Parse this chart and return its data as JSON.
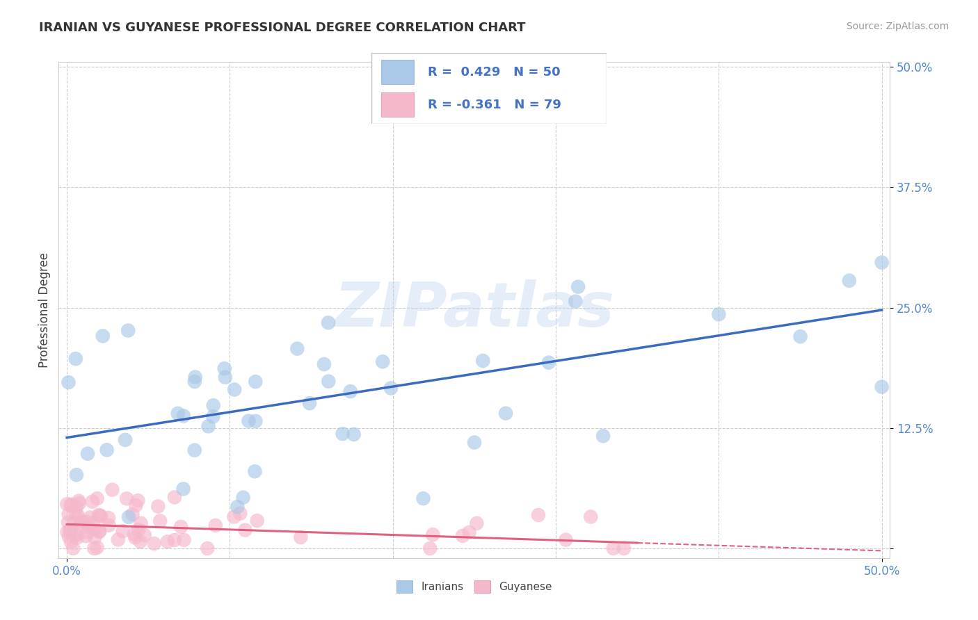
{
  "title": "IRANIAN VS GUYANESE PROFESSIONAL DEGREE CORRELATION CHART",
  "source": "Source: ZipAtlas.com",
  "ylabel": "Professional Degree",
  "xlim": [
    -0.005,
    0.505
  ],
  "ylim": [
    -0.01,
    0.505
  ],
  "yticks": [
    0.0,
    0.125,
    0.25,
    0.375,
    0.5
  ],
  "ytick_labels": [
    "",
    "12.5%",
    "25.0%",
    "37.5%",
    "50.0%"
  ],
  "xtick_labels": [
    "0.0%",
    "50.0%"
  ],
  "iranian_color": "#aac8e8",
  "guyanese_color": "#f5b8cb",
  "iranian_line_color": "#3a6bbf",
  "guyanese_line_color": "#e06080",
  "iranian_R": 0.429,
  "iranian_N": 50,
  "guyanese_R": -0.361,
  "guyanese_N": 79,
  "legend_color": "#4472c4",
  "watermark_text": "ZIPatlas",
  "background_color": "#ffffff",
  "grid_color": "#cccccc",
  "tick_color": "#5588cc",
  "iranian_line_intercept": 0.115,
  "iranian_line_slope": 0.265,
  "guyanese_line_intercept": 0.025,
  "guyanese_line_slope": -0.055
}
